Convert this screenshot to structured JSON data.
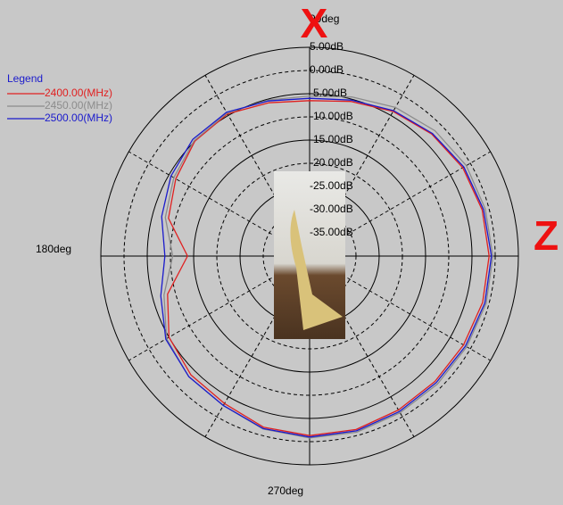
{
  "chart_data": {
    "type": "polar",
    "legend_title": "Legend",
    "angle_labels": [
      "90deg",
      "180deg",
      "270deg"
    ],
    "annotations": [
      "X",
      "Z"
    ],
    "x": [
      0,
      15,
      30,
      45,
      60,
      75,
      90,
      105,
      120,
      135,
      150,
      165,
      180,
      195,
      210,
      225,
      240,
      255,
      270,
      285,
      300,
      315,
      330,
      345
    ],
    "xticks": [
      0,
      30,
      60,
      90,
      120,
      150,
      180,
      210,
      240,
      270,
      300,
      330
    ],
    "rlim": [
      -40,
      5
    ],
    "rticks": [
      {
        "value": 5,
        "label": "5.00dB"
      },
      {
        "value": 0,
        "label": "0.00dB"
      },
      {
        "value": -5,
        "label": "-5.00dB"
      },
      {
        "value": -10,
        "label": "-10.00dB"
      },
      {
        "value": -15,
        "label": "-15.00dB"
      },
      {
        "value": -20,
        "label": "-20.00dB"
      },
      {
        "value": -25,
        "label": "-25.00dB"
      },
      {
        "value": -30,
        "label": "-30.00dB"
      },
      {
        "value": -35,
        "label": "-35.00dB"
      }
    ],
    "series": [
      {
        "name": "2400.00(MHz)",
        "color": "#e02020",
        "values": [
          -1.3,
          -1.5,
          -1.9,
          -2.8,
          -4.0,
          -5.5,
          -6.5,
          -5.8,
          -4.6,
          -5.0,
          -6.7,
          -8.5,
          -13.7,
          -8.3,
          -5.0,
          -3.8,
          -3.3,
          -1.8,
          -1.3,
          -1.3,
          -1.7,
          -1.8,
          -1.7,
          -1.4
        ]
      },
      {
        "name": "2450.00(MHz)",
        "color": "#8c8c8c",
        "values": [
          -0.5,
          -0.8,
          -1.0,
          -1.8,
          -3.0,
          -4.5,
          -5.5,
          -5.2,
          -4.4,
          -4.8,
          -6.2,
          -7.8,
          -10.5,
          -7.5,
          -4.4,
          -3.2,
          -2.8,
          -1.4,
          -0.8,
          -0.7,
          -1.0,
          -1.0,
          -0.9,
          -0.6
        ]
      },
      {
        "name": "2500.00(MHz)",
        "color": "#1a1acc",
        "values": [
          -0.8,
          -1.2,
          -1.6,
          -2.6,
          -3.8,
          -5.2,
          -6.0,
          -5.4,
          -4.2,
          -4.4,
          -5.5,
          -7.0,
          -8.8,
          -6.8,
          -4.2,
          -3.2,
          -2.8,
          -1.5,
          -1.0,
          -1.0,
          -1.3,
          -1.4,
          -1.2,
          -0.9
        ]
      }
    ]
  }
}
